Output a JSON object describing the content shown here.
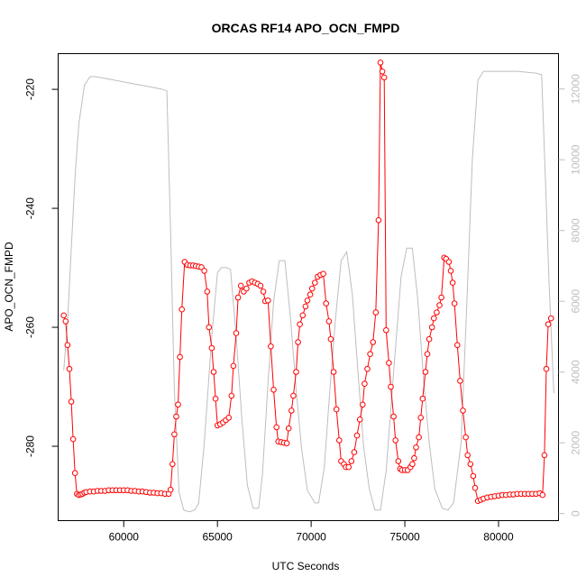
{
  "chart_data": {
    "type": "line",
    "title": "ORCAS RF14 APO_OCN_FMPD",
    "xlabel": "UTC Seconds",
    "ylabel": "APO_OCN_FMPD",
    "xlim": [
      56500,
      83200
    ],
    "ylim": [
      -292.5,
      -214.0
    ],
    "y2lim": [
      -200,
      13000
    ],
    "x_ticks": [
      60000,
      65000,
      70000,
      75000,
      80000
    ],
    "x_tick_labels": [
      "60000",
      "65000",
      "70000",
      "75000",
      "80000"
    ],
    "y_ticks": [
      -220,
      -240,
      -260,
      -280
    ],
    "y_tick_labels": [
      "-220",
      "-240",
      "-260",
      "-280"
    ],
    "y2_ticks": [
      0,
      2000,
      4000,
      6000,
      8000,
      10000,
      12000
    ],
    "y2_tick_labels": [
      "0",
      "2000",
      "4000",
      "6000",
      "8000",
      "10000",
      "12000"
    ],
    "colors": {
      "apo": "#ff0000",
      "altitude": "#bebebe",
      "axis": "#000000"
    },
    "series": [
      {
        "values": [
          [
            56800,
            -258
          ],
          [
            56900,
            -259
          ],
          [
            57000,
            -263
          ],
          [
            57100,
            -267
          ],
          [
            57200,
            -272.5
          ],
          [
            57300,
            -278.8
          ],
          [
            57400,
            -284.5
          ],
          [
            57500,
            -288
          ],
          [
            57600,
            -288.2
          ],
          [
            57700,
            -288.1
          ],
          [
            57800,
            -288
          ],
          [
            57900,
            -287.8
          ],
          [
            58000,
            -287.7
          ],
          [
            58200,
            -287.6
          ],
          [
            58400,
            -287.6
          ],
          [
            58600,
            -287.5
          ],
          [
            58800,
            -287.5
          ],
          [
            59000,
            -287.5
          ],
          [
            59200,
            -287.4
          ],
          [
            59400,
            -287.4
          ],
          [
            59600,
            -287.4
          ],
          [
            59800,
            -287.4
          ],
          [
            60000,
            -287.4
          ],
          [
            60200,
            -287.4
          ],
          [
            60400,
            -287.5
          ],
          [
            60600,
            -287.5
          ],
          [
            60800,
            -287.6
          ],
          [
            61000,
            -287.6
          ],
          [
            61200,
            -287.7
          ],
          [
            61400,
            -287.8
          ],
          [
            61600,
            -287.8
          ],
          [
            61800,
            -287.9
          ],
          [
            62000,
            -287.9
          ],
          [
            62200,
            -288
          ],
          [
            62400,
            -288
          ],
          [
            62500,
            -287.3
          ],
          [
            62600,
            -283
          ],
          [
            62700,
            -278
          ],
          [
            62800,
            -275
          ],
          [
            62900,
            -273
          ],
          [
            63000,
            -265
          ],
          [
            63100,
            -257
          ],
          [
            63250,
            -249
          ],
          [
            63400,
            -249.5
          ],
          [
            63550,
            -249.6
          ],
          [
            63700,
            -249.6
          ],
          [
            63850,
            -249.7
          ],
          [
            64000,
            -249.8
          ],
          [
            64150,
            -249.9
          ],
          [
            64300,
            -250.5
          ],
          [
            64450,
            -254
          ],
          [
            64550,
            -260
          ],
          [
            64700,
            -263.5
          ],
          [
            64800,
            -267.5
          ],
          [
            64900,
            -272
          ],
          [
            65000,
            -276.5
          ],
          [
            65150,
            -276.3
          ],
          [
            65300,
            -276
          ],
          [
            65450,
            -275.6
          ],
          [
            65600,
            -275.2
          ],
          [
            65750,
            -271.5
          ],
          [
            65850,
            -266.5
          ],
          [
            66000,
            -261
          ],
          [
            66100,
            -255
          ],
          [
            66250,
            -253
          ],
          [
            66400,
            -254
          ],
          [
            66550,
            -253.5
          ],
          [
            66700,
            -252.5
          ],
          [
            66850,
            -252.3
          ],
          [
            67000,
            -252.5
          ],
          [
            67150,
            -252.7
          ],
          [
            67300,
            -253
          ],
          [
            67450,
            -254
          ],
          [
            67550,
            -255.6
          ],
          [
            67700,
            -255.5
          ],
          [
            67850,
            -263.2
          ],
          [
            68000,
            -270.5
          ],
          [
            68150,
            -276.8
          ],
          [
            68250,
            -279.2
          ],
          [
            68400,
            -279.3
          ],
          [
            68550,
            -279.4
          ],
          [
            68700,
            -279.5
          ],
          [
            68800,
            -277
          ],
          [
            68950,
            -274
          ],
          [
            69050,
            -271.5
          ],
          [
            69200,
            -267.5
          ],
          [
            69300,
            -262.5
          ],
          [
            69400,
            -259.5
          ],
          [
            69550,
            -258
          ],
          [
            69700,
            -256.5
          ],
          [
            69800,
            -255.5
          ],
          [
            69950,
            -254.5
          ],
          [
            70050,
            -253.5
          ],
          [
            70200,
            -252.5
          ],
          [
            70350,
            -251.5
          ],
          [
            70500,
            -251.2
          ],
          [
            70650,
            -251
          ],
          [
            70800,
            -256
          ],
          [
            70950,
            -259
          ],
          [
            71050,
            -262
          ],
          [
            71200,
            -267.5
          ],
          [
            71350,
            -273.8
          ],
          [
            71500,
            -279
          ],
          [
            71600,
            -282.5
          ],
          [
            71750,
            -283
          ],
          [
            71850,
            -283.5
          ],
          [
            72000,
            -283.5
          ],
          [
            72150,
            -282.5
          ],
          [
            72300,
            -281
          ],
          [
            72450,
            -278.2
          ],
          [
            72600,
            -275.5
          ],
          [
            72750,
            -273
          ],
          [
            72850,
            -269.5
          ],
          [
            73000,
            -267
          ],
          [
            73150,
            -264.5
          ],
          [
            73300,
            -262.5
          ],
          [
            73450,
            -257.5
          ],
          [
            73600,
            -242
          ],
          [
            73700,
            -215.5
          ],
          [
            73800,
            -217
          ],
          [
            73900,
            -218
          ],
          [
            74000,
            -260.5
          ],
          [
            74150,
            -266
          ],
          [
            74250,
            -270
          ],
          [
            74400,
            -275
          ],
          [
            74500,
            -279
          ],
          [
            74650,
            -282.5
          ],
          [
            74750,
            -283.8
          ],
          [
            74850,
            -284
          ],
          [
            75000,
            -284
          ],
          [
            75150,
            -284
          ],
          [
            75300,
            -283.5
          ],
          [
            75400,
            -283
          ],
          [
            75500,
            -282
          ],
          [
            75600,
            -280.2
          ],
          [
            75750,
            -278.5
          ],
          [
            75850,
            -275.2
          ],
          [
            75950,
            -272
          ],
          [
            76100,
            -267.5
          ],
          [
            76200,
            -264.5
          ],
          [
            76300,
            -262
          ],
          [
            76450,
            -260
          ],
          [
            76550,
            -258.5
          ],
          [
            76700,
            -257.5
          ],
          [
            76850,
            -256.3
          ],
          [
            76950,
            -255
          ],
          [
            77100,
            -248.3
          ],
          [
            77200,
            -248.5
          ],
          [
            77350,
            -249
          ],
          [
            77450,
            -250.5
          ],
          [
            77550,
            -252.5
          ],
          [
            77650,
            -256
          ],
          [
            77800,
            -263
          ],
          [
            77950,
            -269
          ],
          [
            78100,
            -274
          ],
          [
            78250,
            -278.5
          ],
          [
            78350,
            -281.5
          ],
          [
            78500,
            -283
          ],
          [
            78650,
            -285
          ],
          [
            78750,
            -287
          ],
          [
            78900,
            -289.2
          ],
          [
            79050,
            -289
          ],
          [
            79200,
            -288.8
          ],
          [
            79400,
            -288.6
          ],
          [
            79600,
            -288.5
          ],
          [
            79800,
            -288.4
          ],
          [
            80000,
            -288.3
          ],
          [
            80200,
            -288.2
          ],
          [
            80400,
            -288.2
          ],
          [
            80600,
            -288.1
          ],
          [
            80800,
            -288.1
          ],
          [
            81000,
            -288
          ],
          [
            81200,
            -288
          ],
          [
            81400,
            -288
          ],
          [
            81600,
            -288
          ],
          [
            81800,
            -288
          ],
          [
            82000,
            -288
          ],
          [
            82200,
            -287.9
          ],
          [
            82350,
            -288.2
          ],
          [
            82450,
            -281.5
          ],
          [
            82550,
            -267
          ],
          [
            82650,
            -259.5
          ],
          [
            82800,
            -258.5
          ]
        ]
      },
      {
        "values": [
          [
            56800,
            4050
          ],
          [
            57000,
            5400
          ],
          [
            57200,
            7500
          ],
          [
            57400,
            9500
          ],
          [
            57600,
            11000
          ],
          [
            57900,
            12100
          ],
          [
            58200,
            12350
          ],
          [
            58500,
            12350
          ],
          [
            59000,
            12300
          ],
          [
            59500,
            12250
          ],
          [
            60000,
            12200
          ],
          [
            60500,
            12150
          ],
          [
            61000,
            12100
          ],
          [
            61500,
            12050
          ],
          [
            62000,
            12000
          ],
          [
            62300,
            11950
          ],
          [
            62500,
            8000
          ],
          [
            62700,
            3500
          ],
          [
            62950,
            600
          ],
          [
            63200,
            100
          ],
          [
            63500,
            50
          ],
          [
            63800,
            100
          ],
          [
            64000,
            300
          ],
          [
            64300,
            2000
          ],
          [
            64700,
            5000
          ],
          [
            65000,
            6800
          ],
          [
            65200,
            6950
          ],
          [
            65500,
            6950
          ],
          [
            65700,
            6900
          ],
          [
            66000,
            5000
          ],
          [
            66300,
            2700
          ],
          [
            66600,
            800
          ],
          [
            66900,
            150
          ],
          [
            67200,
            150
          ],
          [
            67400,
            1100
          ],
          [
            67700,
            3700
          ],
          [
            68000,
            6000
          ],
          [
            68300,
            7150
          ],
          [
            68600,
            7150
          ],
          [
            68900,
            5500
          ],
          [
            69200,
            3500
          ],
          [
            69500,
            1800
          ],
          [
            69800,
            650
          ],
          [
            70200,
            300
          ],
          [
            70400,
            300
          ],
          [
            70700,
            1300
          ],
          [
            71000,
            3500
          ],
          [
            71300,
            5500
          ],
          [
            71600,
            7150
          ],
          [
            71900,
            7400
          ],
          [
            72200,
            6200
          ],
          [
            72500,
            4000
          ],
          [
            72800,
            1900
          ],
          [
            73100,
            700
          ],
          [
            73400,
            100
          ],
          [
            73700,
            100
          ],
          [
            74000,
            1200
          ],
          [
            74400,
            4000
          ],
          [
            74800,
            6700
          ],
          [
            75100,
            7500
          ],
          [
            75400,
            7500
          ],
          [
            75700,
            6000
          ],
          [
            76000,
            3800
          ],
          [
            76300,
            2000
          ],
          [
            76600,
            700
          ],
          [
            77000,
            150
          ],
          [
            77300,
            100
          ],
          [
            77600,
            300
          ],
          [
            78000,
            2000
          ],
          [
            78300,
            5800
          ],
          [
            78600,
            10000
          ],
          [
            78900,
            12250
          ],
          [
            79200,
            12500
          ],
          [
            80000,
            12500
          ],
          [
            81000,
            12500
          ],
          [
            82000,
            12450
          ],
          [
            82300,
            12400
          ],
          [
            82500,
            9500
          ],
          [
            82700,
            6500
          ],
          [
            82950,
            3400
          ]
        ]
      }
    ]
  }
}
